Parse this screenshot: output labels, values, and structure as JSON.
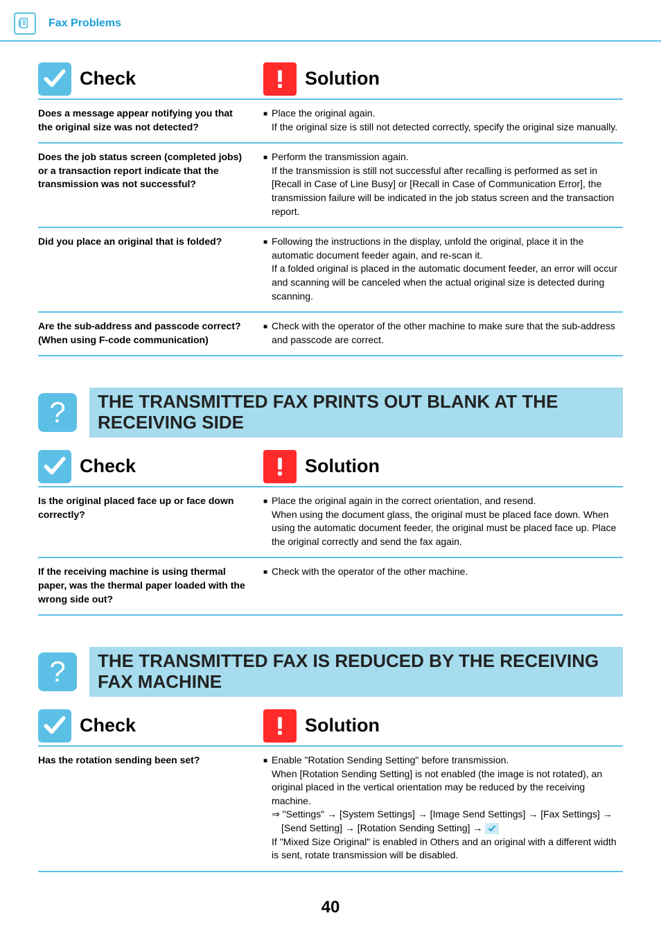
{
  "header": {
    "title": "Fax Problems"
  },
  "labels": {
    "check": "Check",
    "solution": "Solution"
  },
  "page_number": "40",
  "sections": [
    {
      "title": null,
      "rows": [
        {
          "check": "Does a message appear notifying you that the original size was not detected?",
          "sol_lead": "Place the original again.",
          "sol_rest": "If the original size is still not detected correctly, specify the original size manually."
        },
        {
          "check": "Does the job status screen (completed jobs) or a transaction report indicate that the transmission was not successful?",
          "sol_lead": "Perform the transmission again.",
          "sol_rest": "If the transmission is still not successful after recalling is performed as set in [Recall in Case of Line Busy] or [Recall in Case of Communication Error], the transmission failure will be indicated in the job status screen and the transaction report."
        },
        {
          "check": "Did you place an original that is folded?",
          "sol_lead": "Following the instructions in the display, unfold the original, place it in the automatic document feeder again, and re-scan it.",
          "sol_rest": "If a folded original is placed in the automatic document feeder, an error will occur and scanning will be canceled when the actual original size is detected during scanning."
        },
        {
          "check": "Are the sub-address and passcode correct?  (When using F-code communication)",
          "sol_lead": "Check with the operator of the other machine to make sure that the sub-address and passcode are correct.",
          "sol_rest": ""
        }
      ]
    },
    {
      "title": "THE TRANSMITTED FAX PRINTS OUT BLANK AT THE RECEIVING SIDE",
      "rows": [
        {
          "check": "Is the original placed face up or face down correctly?",
          "sol_lead": "Place the original again in the correct orientation, and resend.",
          "sol_rest": "When using the document glass, the original must be placed face down. When using the automatic document feeder, the original must be placed face up. Place the original correctly and send the fax again."
        },
        {
          "check": "If the receiving machine is using thermal paper, was the thermal paper loaded with the wrong side out?",
          "sol_lead": "Check with the operator of the other machine.",
          "sol_rest": ""
        }
      ]
    },
    {
      "title": "THE TRANSMITTED FAX IS REDUCED BY THE RECEIVING FAX MACHINE",
      "rows": [
        {
          "check": "Has the rotation sending been set?",
          "sol_lead": "Enable \"Rotation Sending Setting\" before transmission.",
          "sol_rest": "When [Rotation Sending Setting] is not enabled (the image is not rotated), an original placed in the vertical orientation may be reduced by the receiving machine.",
          "path": "⇒ \"Settings\" →  [System Settings] → [Image Send Settings] → [Fax Settings] → [Send Setting] → [Rotation Sending Setting] → ",
          "tail": "If \"Mixed Size Original\" is enabled in Others and an original with a different width is sent, rotate transmission will be disabled."
        }
      ]
    }
  ]
}
